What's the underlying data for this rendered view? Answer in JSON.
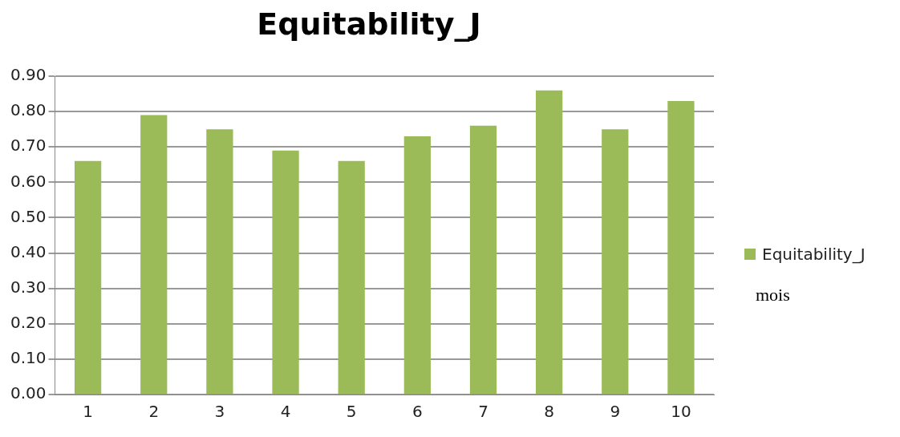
{
  "chart_data": {
    "type": "bar",
    "title": "Equitability_J",
    "xlabel": "mois",
    "categories": [
      "1",
      "2",
      "3",
      "4",
      "5",
      "6",
      "7",
      "8",
      "9",
      "10"
    ],
    "series": [
      {
        "name": "Equitability_J",
        "color": "#9bbb59",
        "values": [
          0.66,
          0.79,
          0.75,
          0.69,
          0.66,
          0.73,
          0.76,
          0.86,
          0.75,
          0.83
        ]
      }
    ],
    "ylim": [
      0,
      0.9
    ],
    "yticks": [
      {
        "value": 0,
        "label": "0.00"
      },
      {
        "value": 0.1,
        "label": "0.10"
      },
      {
        "value": 0.2,
        "label": "0.20"
      },
      {
        "value": 0.3,
        "label": "0.30"
      },
      {
        "value": 0.4,
        "label": "0.40"
      },
      {
        "value": 0.5,
        "label": "0.50"
      },
      {
        "value": 0.6,
        "label": "0.60"
      },
      {
        "value": 0.7,
        "label": "0.70"
      },
      {
        "value": 0.8,
        "label": "0.80"
      },
      {
        "value": 0.9,
        "label": "0.90"
      }
    ],
    "grid": "y",
    "legend": "right"
  }
}
